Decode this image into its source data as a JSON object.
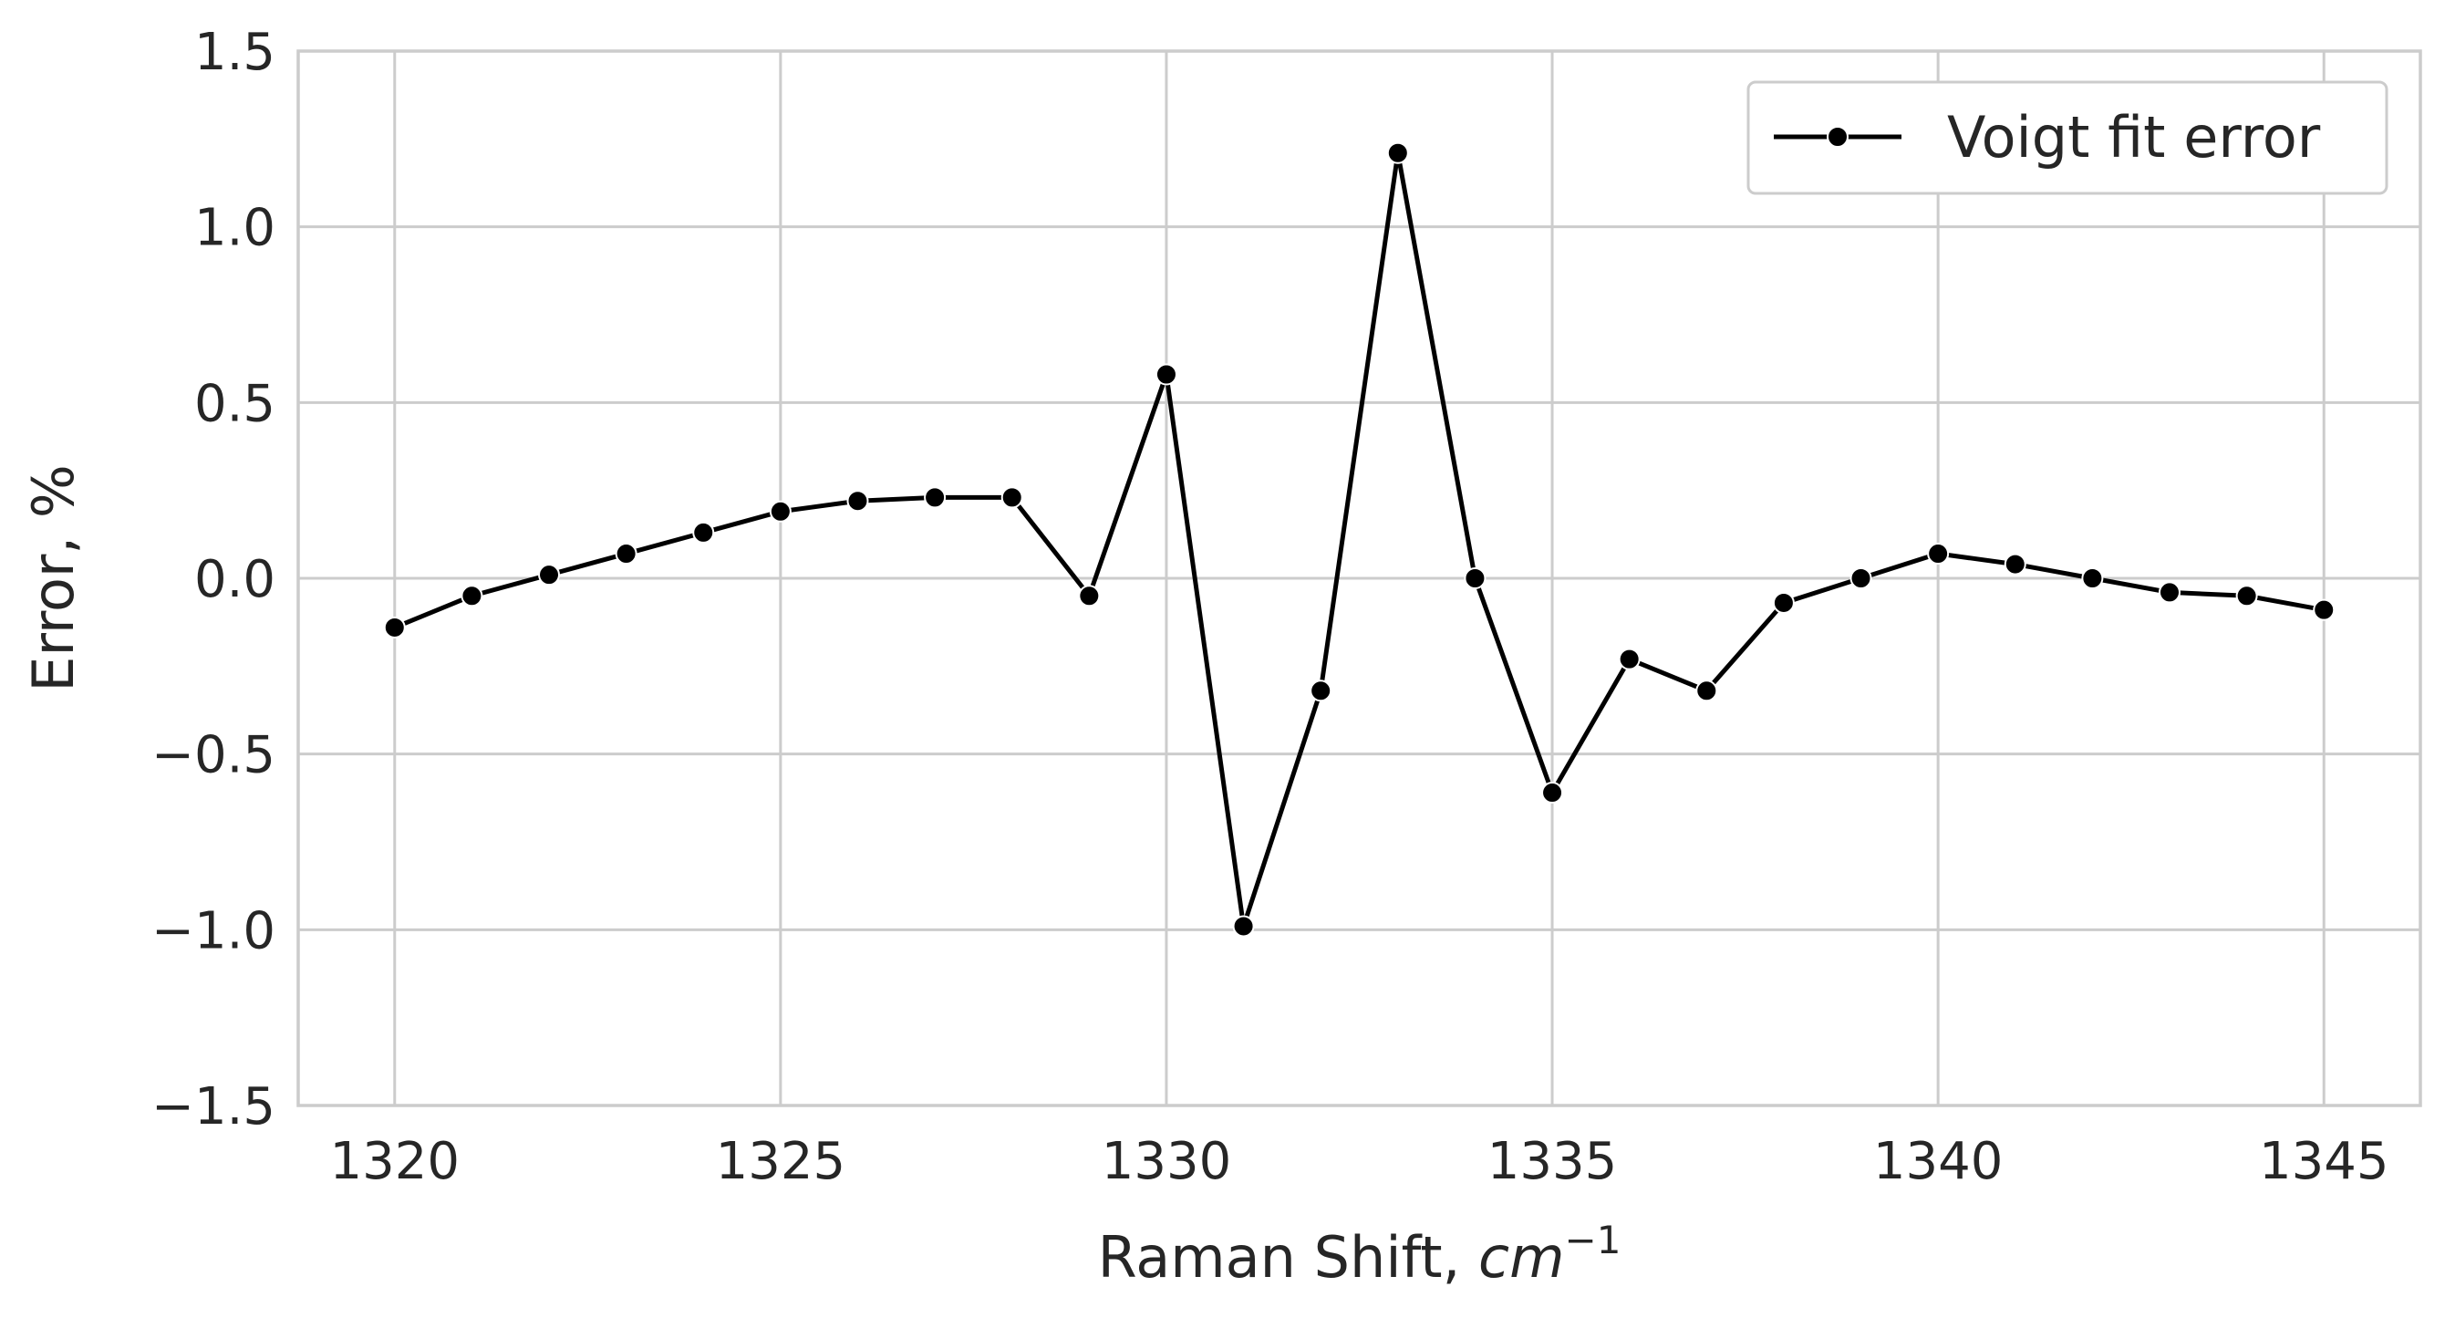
{
  "chart_data": {
    "type": "line",
    "xlabel": "Raman Shift, ",
    "xlabel_unit": "cm",
    "xlabel_exp": "−1",
    "ylabel": "Error, %",
    "xlim": [
      1318.75,
      1346.25
    ],
    "ylim": [
      -1.5,
      1.5
    ],
    "x_ticks": [
      1320,
      1325,
      1330,
      1335,
      1340,
      1345
    ],
    "y_ticks": [
      -1.5,
      -1.0,
      -0.5,
      0.0,
      0.5,
      1.0,
      1.5
    ],
    "y_tick_labels": [
      "−1.5",
      "−1.0",
      "−0.5",
      "0.0",
      "0.5",
      "1.0",
      "1.5"
    ],
    "x_tick_labels": [
      "1320",
      "1325",
      "1330",
      "1335",
      "1340",
      "1345"
    ],
    "grid": true,
    "legend": {
      "position": "top-right",
      "entries": [
        "Voigt fit error"
      ]
    },
    "series": [
      {
        "name": "Voigt fit error",
        "color": "#000000",
        "marker": "circle",
        "x": [
          1320,
          1321,
          1322,
          1323,
          1324,
          1325,
          1326,
          1327,
          1328,
          1329,
          1330,
          1331,
          1332,
          1333,
          1334,
          1335,
          1336,
          1337,
          1338,
          1339,
          1340,
          1341,
          1342,
          1343,
          1344,
          1345
        ],
        "y": [
          -0.14,
          -0.05,
          0.01,
          0.07,
          0.13,
          0.19,
          0.22,
          0.23,
          0.23,
          -0.05,
          0.58,
          -0.99,
          -0.32,
          1.21,
          0.0,
          -0.61,
          -0.23,
          -0.32,
          -0.07,
          0.0,
          0.07,
          0.04,
          0.0,
          -0.04,
          -0.05,
          -0.09
        ]
      }
    ]
  }
}
